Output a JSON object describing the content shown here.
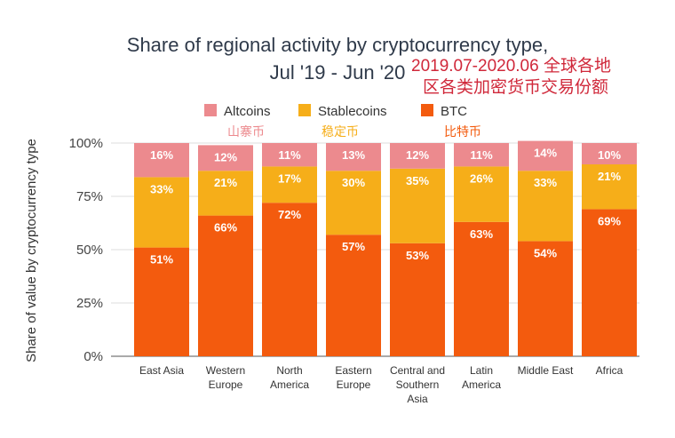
{
  "chart_data": {
    "type": "bar",
    "stacked": true,
    "title": "Share of regional activity by cryptocurrency type,",
    "subtitle": "Jul '19 - Jun '20",
    "annotation": [
      "2019.07-2020.06 全球各地",
      "区各类加密货币交易份额"
    ],
    "ylabel": "Share of value by cryptocurrency type",
    "xlabel": "",
    "ylim": [
      0,
      100
    ],
    "yticks": [
      "0%",
      "25%",
      "50%",
      "75%",
      "100%"
    ],
    "grid": true,
    "legend_placement": "top",
    "categories": [
      [
        "East Asia"
      ],
      [
        "Western",
        "Europe"
      ],
      [
        "North",
        "America"
      ],
      [
        "Eastern",
        "Europe"
      ],
      [
        "Central and",
        "Southern",
        "Asia"
      ],
      [
        "Latin",
        "America"
      ],
      [
        "Middle East"
      ],
      [
        "Africa"
      ]
    ],
    "series": [
      {
        "name": "BTC",
        "name_cn": "比特币",
        "color": "#f35b0e",
        "values": [
          51,
          66,
          72,
          57,
          53,
          63,
          54,
          69
        ]
      },
      {
        "name": "Stablecoins",
        "name_cn": "稳定币",
        "color": "#f6ae19",
        "values": [
          33,
          21,
          17,
          30,
          35,
          26,
          33,
          21
        ]
      },
      {
        "name": "Altcoins",
        "name_cn": "山寨币",
        "color": "#ec8a8e",
        "values": [
          16,
          12,
          11,
          13,
          12,
          11,
          14,
          10
        ]
      }
    ],
    "legend_order": [
      "Altcoins",
      "Stablecoins",
      "BTC"
    ]
  }
}
